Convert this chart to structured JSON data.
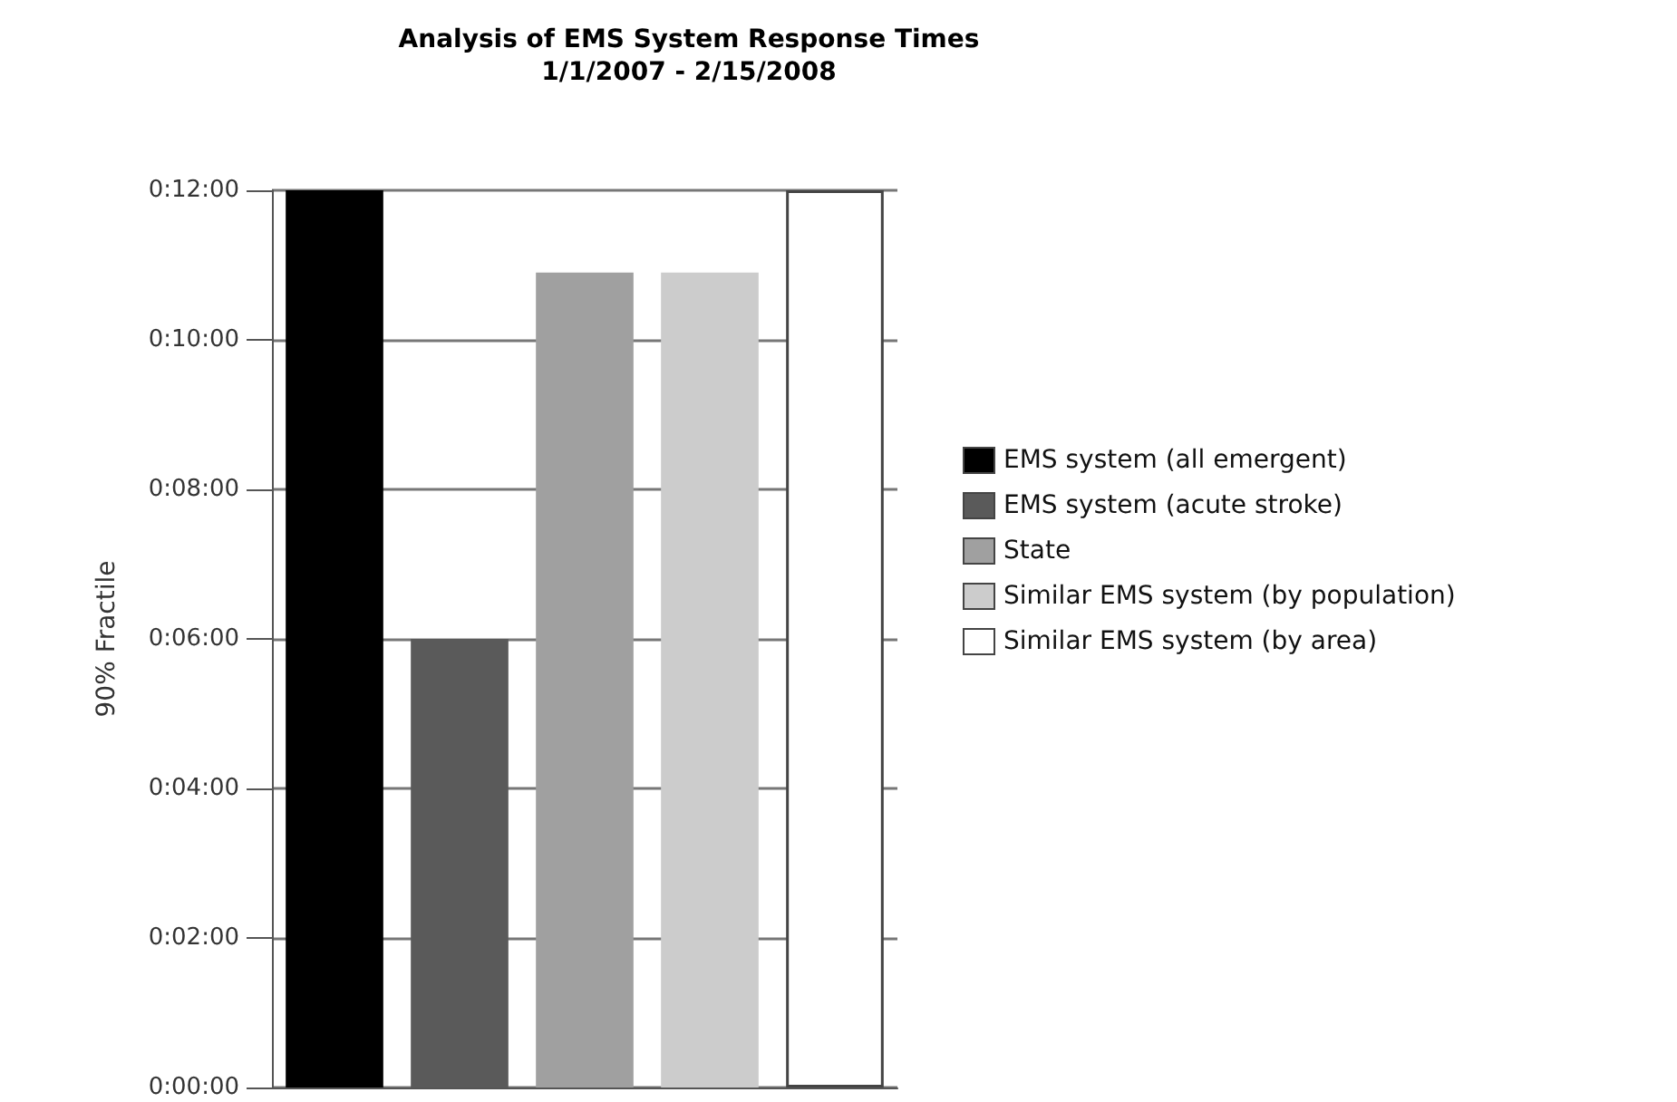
{
  "chart_data": {
    "type": "bar",
    "title": "Analysis of EMS System Response Times",
    "subtitle": "1/1/2007 - 2/15/2008",
    "ylabel": "90% Fractile",
    "categories": [
      null,
      null,
      null,
      null,
      null
    ],
    "series": [
      {
        "name": "EMS system (all emergent)",
        "color": "#000000",
        "values": [
          12,
          null,
          null,
          null,
          null
        ]
      },
      {
        "name": "EMS system (acute stroke)",
        "color": "#5a5a5a",
        "values": [
          null,
          6,
          null,
          null,
          null
        ]
      },
      {
        "name": "State",
        "color": "#a0a0a0",
        "values": [
          null,
          null,
          10.9,
          null,
          null
        ]
      },
      {
        "name": "Similar EMS system (by population)",
        "color": "#cccccc",
        "values": [
          null,
          null,
          null,
          10.9,
          null
        ]
      },
      {
        "name": "Similar EMS system (by area)",
        "color": "#ffffff",
        "values": [
          null,
          null,
          null,
          null,
          12
        ]
      }
    ],
    "ylim": [
      0,
      12
    ],
    "yticks": [
      {
        "value": 0,
        "label": "0:00:00"
      },
      {
        "value": 2,
        "label": "0:02:00"
      },
      {
        "value": 4,
        "label": "0:04:00"
      },
      {
        "value": 6,
        "label": "0:06:00"
      },
      {
        "value": 8,
        "label": "0:08:00"
      },
      {
        "value": 10,
        "label": "0:10:00"
      },
      {
        "value": 12,
        "label": "0:12:00"
      }
    ],
    "grid": "y",
    "legend": "right"
  }
}
